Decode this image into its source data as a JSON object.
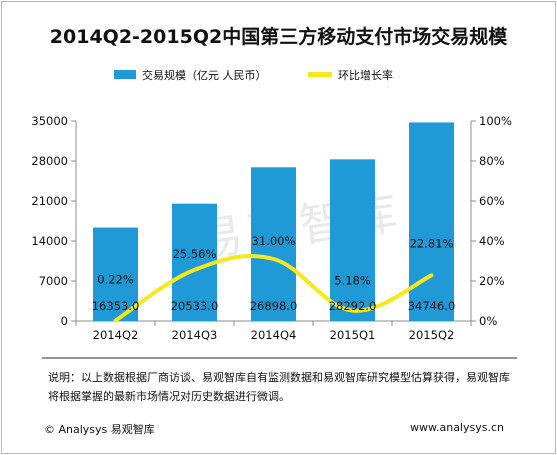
{
  "chart_data": {
    "type": "bar",
    "title": "2014Q2-2015Q2中国第三方移动支付市场交易规模",
    "categories": [
      "2014Q2",
      "2014Q3",
      "2014Q4",
      "2015Q1",
      "2015Q2"
    ],
    "series": [
      {
        "name": "交易规模（亿元 人民币）",
        "type": "bar",
        "axis": "left",
        "values": [
          16353.0,
          20533.0,
          26898.0,
          28292.0,
          34746.0
        ],
        "labels": [
          "16353.0",
          "20533.0",
          "26898.0",
          "28292.0",
          "34746.0"
        ],
        "color": "#1f9ad6"
      },
      {
        "name": "环比增长率",
        "type": "line",
        "axis": "right",
        "values": [
          0.22,
          25.56,
          31.0,
          5.18,
          22.81
        ],
        "labels": [
          "0.22%",
          "25.56%",
          "31.00%",
          "5.18%",
          "22.81%"
        ],
        "color": "#f6e81a"
      }
    ],
    "y_left": {
      "min": 0,
      "max": 35000,
      "ticks": [
        "0",
        "7000",
        "14000",
        "21000",
        "28000",
        "35000"
      ]
    },
    "y_right": {
      "min": 0,
      "max": 100,
      "ticks": [
        "0%",
        "20%",
        "40%",
        "60%",
        "80%",
        "100%"
      ]
    },
    "legend_position": "top",
    "grid": false
  },
  "watermark": "易观智库",
  "note": "说明：以上数据根据厂商访谈、易观智库自有监测数据和易观智库研究模型估算获得，易观智库将根据掌握的最新市场情况对历史数据进行微调。",
  "footer": {
    "copyright": "© Analysys 易观智库",
    "website": "www.analysys.cn"
  }
}
